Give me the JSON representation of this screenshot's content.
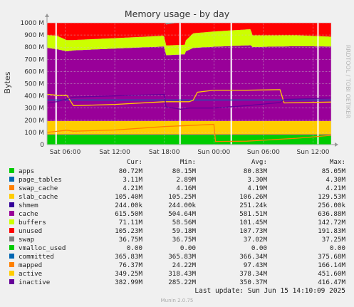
{
  "chart_data": {
    "type": "area",
    "title": "Memory usage - by day",
    "ylabel": "Bytes",
    "side_label": "RRDTOOL / TOBI OETIKER",
    "footer": "Munin 2.0.75",
    "last_update": "Last update:  Sun Jun 15 14:10:09 2025",
    "y_ticks": [
      "0",
      "100 M",
      "200 M",
      "300 M",
      "400 M",
      "500 M",
      "600 M",
      "700 M",
      "800 M",
      "900 M",
      "1000 M"
    ],
    "ylim": [
      0,
      1000
    ],
    "x_ticks": [
      "Sat 06:00",
      "Sat 12:00",
      "Sat 18:00",
      "Sun 00:00",
      "Sun 06:00",
      "Sun 12:00"
    ],
    "x_hours": [
      6,
      12,
      18,
      24,
      30,
      36
    ],
    "x_range_hours": [
      3.8,
      38.2
    ],
    "day_markers_hours": [
      4.9,
      19.9,
      26.1,
      36.6
    ],
    "columns": [
      "Cur:",
      "Min:",
      "Avg:",
      "Max:"
    ],
    "series": [
      {
        "name": "apps",
        "color": "#00cc00",
        "kind": "area",
        "stats": [
          "80.72M",
          "80.15M",
          "80.83M",
          "85.05M"
        ],
        "points": [
          [
            3.8,
            80
          ],
          [
            38.2,
            80
          ]
        ]
      },
      {
        "name": "page_tables",
        "color": "#0066b3",
        "kind": "area",
        "stats": [
          "3.11M",
          "2.89M",
          "3.30M",
          "4.30M"
        ],
        "points": [
          [
            3.8,
            3.3
          ],
          [
            38.2,
            3.3
          ]
        ]
      },
      {
        "name": "swap_cache",
        "color": "#ff8000",
        "kind": "area",
        "stats": [
          "4.21M",
          "4.16M",
          "4.19M",
          "4.21M"
        ],
        "points": [
          [
            3.8,
            4.2
          ],
          [
            38.2,
            4.2
          ]
        ]
      },
      {
        "name": "slab_cache",
        "color": "#ffcc00",
        "kind": "area",
        "stats": [
          "105.40M",
          "105.25M",
          "106.26M",
          "129.53M"
        ],
        "points": [
          [
            3.8,
            106
          ],
          [
            38.2,
            106
          ]
        ]
      },
      {
        "name": "shmem",
        "color": "#330099",
        "kind": "area",
        "stats": [
          "244.00k",
          "244.00k",
          "251.24k",
          "256.00k"
        ],
        "points": [
          [
            3.8,
            0.25
          ],
          [
            38.2,
            0.25
          ]
        ]
      },
      {
        "name": "cache",
        "color": "#990099",
        "kind": "area",
        "stats": [
          "615.50M",
          "504.64M",
          "581.51M",
          "636.88M"
        ],
        "points": [
          [
            3.8,
            600
          ],
          [
            5,
            590
          ],
          [
            6.2,
            572
          ],
          [
            7,
            580
          ],
          [
            12,
            595
          ],
          [
            18,
            612
          ],
          [
            18.1,
            575
          ],
          [
            18.2,
            540
          ],
          [
            20.5,
            548
          ],
          [
            20.6,
            572
          ],
          [
            21.5,
            600
          ],
          [
            24,
            610
          ],
          [
            28.5,
            622
          ],
          [
            28.6,
            608
          ],
          [
            34,
            614
          ],
          [
            38.2,
            612
          ]
        ]
      },
      {
        "name": "buffers",
        "color": "#ccff00",
        "kind": "area",
        "stats": [
          "71.11M",
          "58.56M",
          "101.45M",
          "142.72M"
        ],
        "points": [
          [
            3.8,
            105
          ],
          [
            5,
            110
          ],
          [
            6.2,
            92
          ],
          [
            7,
            85
          ],
          [
            12,
            85
          ],
          [
            17.8,
            88
          ],
          [
            18.2,
            80
          ],
          [
            20.5,
            78
          ],
          [
            20.6,
            90
          ],
          [
            21.5,
            120
          ],
          [
            24,
            125
          ],
          [
            28.5,
            132
          ],
          [
            28.6,
            95
          ],
          [
            34,
            90
          ],
          [
            38.2,
            80
          ]
        ]
      },
      {
        "name": "unused",
        "color": "#ff0000",
        "kind": "area",
        "stats": [
          "105.23M",
          "59.18M",
          "107.73M",
          "191.83M"
        ],
        "points": [
          [
            3.8,
            185
          ],
          [
            5,
            165
          ],
          [
            6.2,
            188
          ],
          [
            7,
            185
          ],
          [
            12,
            150
          ],
          [
            17.8,
            118
          ],
          [
            18.2,
            172
          ],
          [
            20.5,
            192
          ],
          [
            20.6,
            165
          ],
          [
            21.5,
            110
          ],
          [
            24,
            100
          ],
          [
            28.5,
            75
          ],
          [
            28.6,
            110
          ],
          [
            34,
            110
          ],
          [
            38.2,
            120
          ]
        ]
      },
      {
        "name": "swap",
        "color": "#7f7f7f",
        "kind": "area",
        "stats": [
          "36.75M",
          "36.75M",
          "37.02M",
          "37.25M"
        ],
        "points": [
          [
            3.8,
            37
          ],
          [
            38.2,
            37
          ]
        ]
      },
      {
        "name": "vmalloc_used",
        "color": "#00cc00",
        "kind": "line",
        "stats": [
          "0.00",
          "0.00",
          "0.00",
          "0.00"
        ],
        "points": [
          [
            3.8,
            0
          ],
          [
            38.2,
            0
          ]
        ]
      },
      {
        "name": "committed",
        "color": "#0066b3",
        "kind": "line",
        "stats": [
          "365.83M",
          "365.83M",
          "366.34M",
          "375.68M"
        ],
        "points": [
          [
            3.8,
            366
          ],
          [
            38.2,
            366
          ]
        ]
      },
      {
        "name": "mapped",
        "color": "#ff8000",
        "kind": "line",
        "stats": [
          "76.37M",
          "24.22M",
          "97.43M",
          "166.14M"
        ],
        "points": [
          [
            3.8,
            100
          ],
          [
            6.2,
            118
          ],
          [
            7,
            110
          ],
          [
            12,
            120
          ],
          [
            18,
            148
          ],
          [
            24,
            166
          ],
          [
            24.2,
            26
          ],
          [
            28,
            28
          ],
          [
            34,
            52
          ],
          [
            38.2,
            76
          ]
        ]
      },
      {
        "name": "active",
        "color": "#ffcc00",
        "kind": "line",
        "stats": [
          "349.25M",
          "318.43M",
          "378.34M",
          "451.60M"
        ],
        "points": [
          [
            3.8,
            413
          ],
          [
            5,
            405
          ],
          [
            6.2,
            406
          ],
          [
            7,
            320
          ],
          [
            12,
            330
          ],
          [
            18,
            352
          ],
          [
            21,
            352
          ],
          [
            21.5,
            365
          ],
          [
            22,
            430
          ],
          [
            24,
            447
          ],
          [
            28,
            447
          ],
          [
            32,
            451
          ],
          [
            32.5,
            342
          ],
          [
            38.2,
            349
          ]
        ]
      },
      {
        "name": "inactive",
        "color": "#660099",
        "kind": "line",
        "stats": [
          "382.99M",
          "285.22M",
          "350.37M",
          "416.47M"
        ],
        "points": [
          [
            3.8,
            340
          ],
          [
            5,
            352
          ],
          [
            7,
            390
          ],
          [
            12,
            400
          ],
          [
            18,
            412
          ],
          [
            18.2,
            310
          ],
          [
            20,
            290
          ],
          [
            21,
            300
          ],
          [
            24,
            300
          ],
          [
            28,
            320
          ],
          [
            32,
            345
          ],
          [
            32.5,
            370
          ],
          [
            38.2,
            383
          ]
        ]
      }
    ]
  }
}
